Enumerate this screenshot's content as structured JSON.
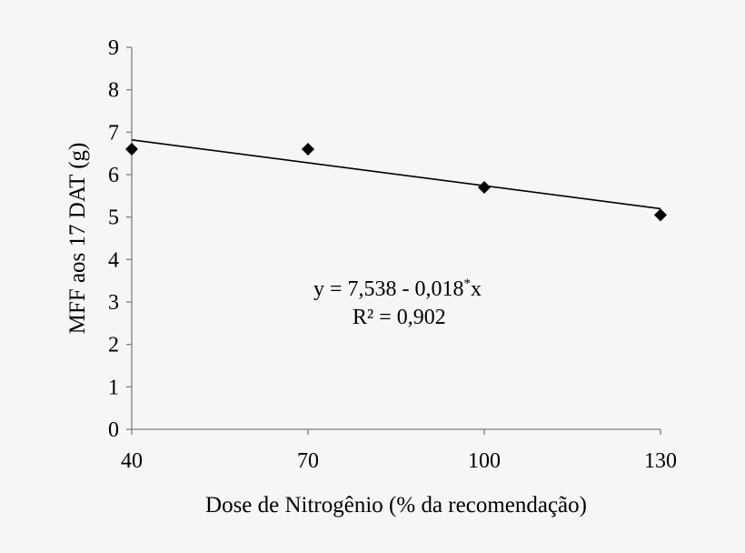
{
  "chart_data": {
    "type": "scatter",
    "title": "",
    "xlabel": "Dose de Nitrogênio (% da recomendação)",
    "ylabel": "MFF aos 17 DAT (g)",
    "x_ticks": [
      "40",
      "70",
      "100",
      "130"
    ],
    "x_tick_values": [
      40,
      70,
      100,
      130
    ],
    "y_ticks": [
      "0",
      "1",
      "2",
      "3",
      "4",
      "5",
      "6",
      "7",
      "8",
      "9"
    ],
    "y_tick_values": [
      0,
      1,
      2,
      3,
      4,
      5,
      6,
      7,
      8,
      9
    ],
    "xlim": [
      40,
      130
    ],
    "ylim": [
      0,
      9
    ],
    "grid": false,
    "marker": "diamond",
    "marker_color": "#000000",
    "series": [
      {
        "x": [
          40,
          70,
          100,
          130
        ],
        "y": [
          6.6,
          6.6,
          5.7,
          5.05
        ]
      }
    ],
    "trendline": {
      "type": "linear",
      "intercept": 7.538,
      "slope": -0.018,
      "x_range": [
        40,
        130
      ]
    },
    "annotations": {
      "equation_main": "y = 7,538 - 0,018",
      "equation_sup": "*",
      "equation_tail": "x",
      "r2": "R² = 0,902"
    }
  }
}
